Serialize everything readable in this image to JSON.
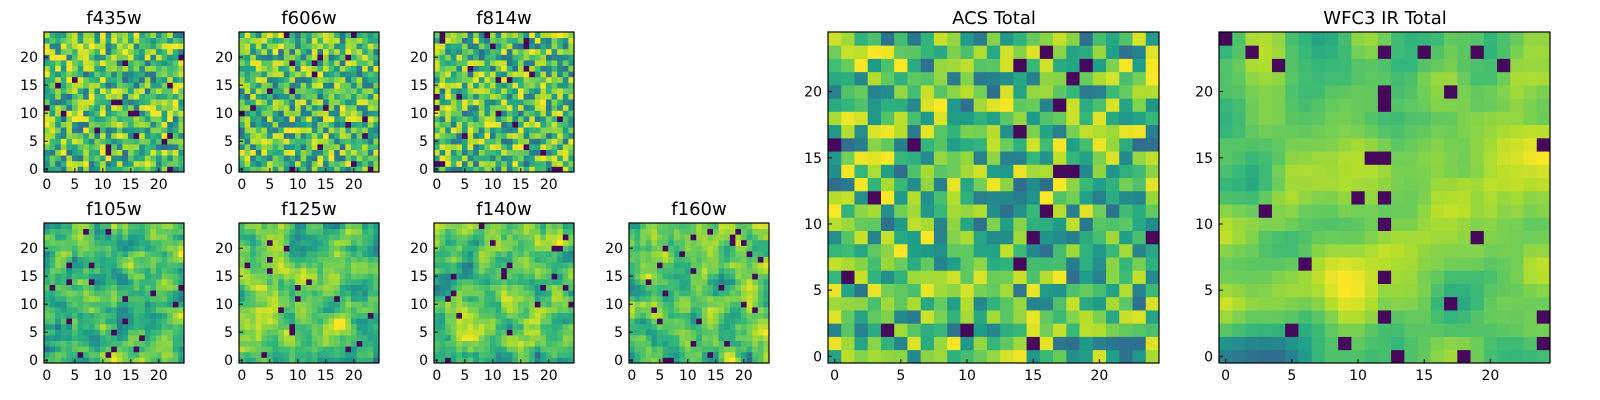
{
  "figure": {
    "background": "#ffffff",
    "colormap": "viridis",
    "vmin": 0,
    "vmax": 1
  },
  "chart_data": [
    {
      "type": "heatmap",
      "title": "f435w",
      "grid_size": 25,
      "seed": 11,
      "smoothness": 0,
      "xticks": [
        0,
        5,
        10,
        15,
        20
      ],
      "yticks": [
        0,
        5,
        10,
        15,
        20
      ]
    },
    {
      "type": "heatmap",
      "title": "f606w",
      "grid_size": 25,
      "seed": 23,
      "smoothness": 0,
      "xticks": [
        0,
        5,
        10,
        15,
        20
      ],
      "yticks": [
        0,
        5,
        10,
        15,
        20
      ]
    },
    {
      "type": "heatmap",
      "title": "f814w",
      "grid_size": 25,
      "seed": 37,
      "smoothness": 0,
      "xticks": [
        0,
        5,
        10,
        15,
        20
      ],
      "yticks": [
        0,
        5,
        10,
        15,
        20
      ]
    },
    {
      "type": "heatmap",
      "title": "f105w",
      "grid_size": 25,
      "seed": 41,
      "smoothness": 1,
      "xticks": [
        0,
        5,
        10,
        15,
        20
      ],
      "yticks": [
        0,
        5,
        10,
        15,
        20
      ]
    },
    {
      "type": "heatmap",
      "title": "f125w",
      "grid_size": 25,
      "seed": 53,
      "smoothness": 1,
      "xticks": [
        0,
        5,
        10,
        15,
        20
      ],
      "yticks": [
        0,
        5,
        10,
        15,
        20
      ]
    },
    {
      "type": "heatmap",
      "title": "f140w",
      "grid_size": 25,
      "seed": 67,
      "smoothness": 1,
      "xticks": [
        0,
        5,
        10,
        15,
        20
      ],
      "yticks": [
        0,
        5,
        10,
        15,
        20
      ]
    },
    {
      "type": "heatmap",
      "title": "f160w",
      "grid_size": 25,
      "seed": 79,
      "smoothness": 1,
      "xticks": [
        0,
        5,
        10,
        15,
        20
      ],
      "yticks": [
        0,
        5,
        10,
        15,
        20
      ]
    },
    {
      "type": "heatmap",
      "title": "ACS Total",
      "grid_size": 25,
      "seed": 83,
      "smoothness": 0,
      "xticks": [
        0,
        5,
        10,
        15,
        20
      ],
      "yticks": [
        0,
        5,
        10,
        15,
        20
      ]
    },
    {
      "type": "heatmap",
      "title": "WFC3 IR Total",
      "grid_size": 25,
      "seed": 97,
      "smoothness": 2,
      "xticks": [
        0,
        5,
        10,
        15,
        20
      ],
      "yticks": [
        0,
        5,
        10,
        15,
        20
      ]
    }
  ]
}
